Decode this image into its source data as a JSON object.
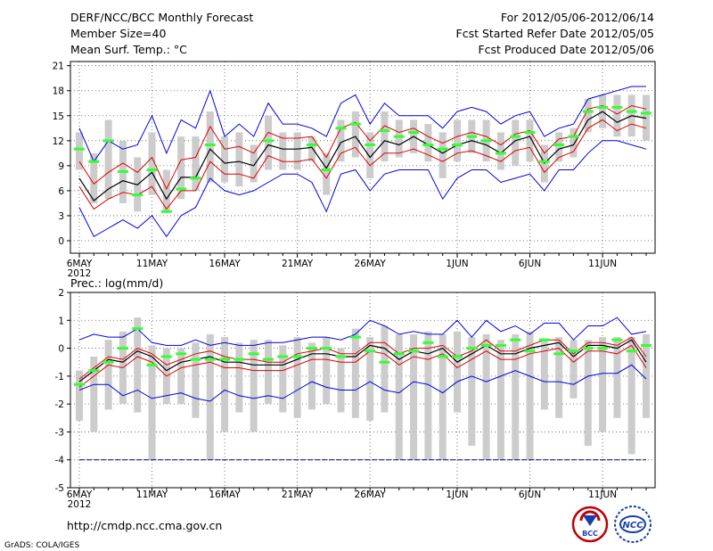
{
  "header": {
    "title": "DERF/NCC/BCC Monthly Forecast",
    "member": "Member Size=40",
    "variable": "Mean Surf. Temp.: °C",
    "period": "For 2012/05/06-2012/06/14",
    "started": "Fcst Started Refer Date 2012/05/05",
    "produced": "Fcst Produced Date 2012/05/06"
  },
  "footer": {
    "url": "http://cmdp.ncc.cma.gov.cn",
    "credit": "GrADS: COLA/IGES",
    "logo_left": "BCC",
    "logo_right": "NCC"
  },
  "colors": {
    "box": "#cccccc",
    "mean": "#000000",
    "spread": "#e00000",
    "envelope": "#0000e0",
    "observed": "#33ff33",
    "threshold": "#000090"
  },
  "chart_data": [
    {
      "type": "box-line",
      "title": "Mean Surf. Temp.: °C",
      "unit": "°C",
      "ylim": [
        -1.5,
        21.5
      ],
      "yticks": [
        0,
        3,
        6,
        9,
        12,
        15,
        18,
        21
      ],
      "x_tick_labels": [
        "6MAY",
        "11MAY",
        "16MAY",
        "21MAY",
        "26MAY",
        "1JUN",
        "6JUN",
        "11JUN"
      ],
      "x_tick_days": [
        1,
        6,
        11,
        16,
        21,
        27,
        32,
        37
      ],
      "year_label": "2012",
      "days": 40,
      "series": {
        "mean": [
          7.5,
          4.8,
          6.2,
          7.2,
          6.7,
          8.2,
          5.0,
          7.6,
          7.6,
          11.0,
          9.3,
          9.5,
          9.0,
          11.5,
          11.0,
          11.0,
          11.2,
          8.7,
          11.8,
          12.5,
          10.0,
          12.0,
          11.5,
          12.5,
          11.5,
          10.5,
          11.5,
          12.0,
          11.5,
          10.5,
          12.0,
          12.5,
          9.3,
          11.0,
          11.5,
          14.5,
          15.5,
          14.2,
          15.0,
          14.7
        ],
        "upper": [
          9.5,
          6.8,
          8.2,
          9.3,
          8.2,
          10.0,
          6.2,
          9.7,
          10.0,
          13.7,
          11.0,
          11.3,
          10.5,
          13.0,
          12.3,
          12.3,
          12.5,
          10.0,
          13.5,
          14.2,
          12.0,
          13.8,
          13.0,
          13.5,
          12.5,
          11.7,
          12.5,
          13.0,
          12.5,
          11.5,
          12.8,
          13.2,
          10.5,
          12.2,
          12.5,
          15.8,
          16.2,
          15.2,
          16.2,
          15.8
        ],
        "lower": [
          6.5,
          3.8,
          5.0,
          5.8,
          5.5,
          6.5,
          3.8,
          6.0,
          6.0,
          9.5,
          8.0,
          8.0,
          7.5,
          10.2,
          9.5,
          9.5,
          9.8,
          7.5,
          10.5,
          11.2,
          9.0,
          10.5,
          10.5,
          11.0,
          10.3,
          9.5,
          10.5,
          10.8,
          10.2,
          9.5,
          10.8,
          11.2,
          8.2,
          10.0,
          10.7,
          13.5,
          14.5,
          13.2,
          14.0,
          13.5
        ],
        "env_high": [
          13.5,
          9.5,
          12.0,
          11.0,
          11.5,
          15.0,
          10.5,
          14.5,
          13.5,
          18.0,
          12.5,
          14.0,
          12.5,
          16.5,
          14.0,
          14.0,
          13.5,
          12.5,
          16.5,
          17.5,
          14.0,
          16.5,
          15.0,
          15.0,
          15.0,
          13.5,
          15.5,
          16.0,
          15.5,
          14.0,
          15.0,
          15.5,
          12.5,
          13.5,
          14.0,
          17.0,
          17.5,
          18.0,
          18.5,
          18.5
        ],
        "env_low": [
          4.0,
          0.5,
          1.5,
          2.5,
          1.5,
          3.0,
          0.5,
          3.0,
          4.0,
          7.5,
          6.0,
          5.5,
          6.0,
          7.0,
          8.0,
          8.0,
          7.0,
          3.5,
          8.0,
          8.5,
          6.0,
          8.0,
          8.5,
          8.5,
          8.5,
          5.0,
          7.5,
          8.5,
          8.5,
          7.0,
          7.5,
          8.0,
          6.0,
          8.5,
          8.5,
          10.5,
          12.0,
          12.0,
          11.5,
          11.0
        ],
        "box_high": [
          13.0,
          10.5,
          14.5,
          12.0,
          10.0,
          13.0,
          8.5,
          12.5,
          12.5,
          15.5,
          12.5,
          13.0,
          11.5,
          15.0,
          13.0,
          13.0,
          12.5,
          10.5,
          14.5,
          15.5,
          13.0,
          15.5,
          14.5,
          14.5,
          14.0,
          13.0,
          14.5,
          14.5,
          14.5,
          13.0,
          14.5,
          14.5,
          11.5,
          13.0,
          13.5,
          17.0,
          17.5,
          17.5,
          17.5,
          17.5
        ],
        "box_low": [
          8.5,
          4.5,
          5.0,
          4.5,
          3.5,
          5.5,
          3.5,
          5.0,
          6.0,
          7.0,
          7.0,
          6.5,
          7.0,
          8.5,
          8.5,
          8.5,
          9.5,
          5.5,
          9.5,
          10.0,
          7.5,
          9.5,
          10.0,
          10.5,
          9.5,
          7.5,
          9.5,
          10.5,
          9.5,
          8.5,
          9.0,
          9.5,
          7.0,
          9.5,
          10.0,
          13.0,
          13.5,
          12.5,
          12.5,
          12.0
        ],
        "observed": [
          11.0,
          9.5,
          12.0,
          8.3,
          5.5,
          8.5,
          3.5,
          6.2,
          7.5,
          11.5,
          null,
          null,
          null,
          12.0,
          null,
          null,
          11.5,
          8.5,
          13.5,
          14.0,
          11.5,
          13.2,
          12.5,
          13.0,
          11.5,
          11.0,
          11.5,
          12.5,
          12.0,
          10.5,
          12.5,
          13.0,
          9.5,
          11.5,
          12.5,
          15.5,
          16.0,
          16.0,
          15.5,
          15.3
        ]
      }
    },
    {
      "type": "box-line",
      "title": "Prec.: log(mm/d)",
      "unit": "log(mm/d)",
      "ylim": [
        -5,
        2
      ],
      "yticks": [
        -5,
        -4,
        -3,
        -2,
        -1,
        0,
        1,
        2
      ],
      "x_tick_labels": [
        "6MAY",
        "11MAY",
        "16MAY",
        "21MAY",
        "26MAY",
        "1JUN",
        "6JUN",
        "11JUN"
      ],
      "x_tick_days": [
        1,
        6,
        11,
        16,
        21,
        27,
        32,
        37
      ],
      "year_label": "2012",
      "days": 40,
      "threshold": -4,
      "series": {
        "mean": [
          -1.2,
          -0.8,
          -0.4,
          -0.5,
          -0.1,
          -0.3,
          -0.8,
          -0.5,
          -0.4,
          -0.3,
          -0.5,
          -0.5,
          -0.6,
          -0.6,
          -0.6,
          -0.4,
          -0.2,
          -0.2,
          -0.3,
          -0.3,
          0.1,
          0.0,
          -0.4,
          -0.1,
          -0.2,
          0.0,
          -0.5,
          -0.2,
          0.1,
          -0.2,
          -0.2,
          0.0,
          0.1,
          0.2,
          -0.3,
          0.1,
          0.1,
          0.0,
          0.3,
          -0.5
        ],
        "upper": [
          -1.1,
          -0.7,
          -0.3,
          -0.4,
          0.0,
          -0.2,
          -0.6,
          -0.4,
          -0.2,
          -0.1,
          -0.3,
          -0.4,
          -0.4,
          -0.5,
          -0.5,
          -0.2,
          -0.1,
          0.0,
          -0.2,
          -0.2,
          0.2,
          0.2,
          -0.2,
          0.0,
          0.0,
          0.1,
          -0.3,
          -0.1,
          0.3,
          -0.1,
          -0.1,
          0.1,
          0.3,
          0.3,
          -0.2,
          0.2,
          0.2,
          0.1,
          0.4,
          -0.3
        ],
        "lower": [
          -1.4,
          -1.0,
          -0.6,
          -0.7,
          -0.3,
          -0.5,
          -1.0,
          -0.7,
          -0.6,
          -0.5,
          -0.7,
          -0.7,
          -0.8,
          -0.8,
          -0.8,
          -0.6,
          -0.4,
          -0.4,
          -0.5,
          -0.5,
          -0.1,
          -0.2,
          -0.6,
          -0.3,
          -0.4,
          -0.2,
          -0.7,
          -0.4,
          -0.1,
          -0.4,
          -0.4,
          -0.2,
          -0.1,
          0.0,
          -0.5,
          -0.1,
          -0.1,
          -0.2,
          0.1,
          -0.7
        ],
        "env_high": [
          0.3,
          0.5,
          0.4,
          0.4,
          0.7,
          0.2,
          0.1,
          0.1,
          0.3,
          0.1,
          0.2,
          0.1,
          0.1,
          0.2,
          0.2,
          0.3,
          0.4,
          0.4,
          0.3,
          0.5,
          1.0,
          0.8,
          0.5,
          0.6,
          0.5,
          0.5,
          1.0,
          0.4,
          1.0,
          0.6,
          0.8,
          0.5,
          0.9,
          0.9,
          0.3,
          0.8,
          0.8,
          1.1,
          0.5,
          0.6
        ],
        "env_low": [
          -1.5,
          -1.3,
          -1.3,
          -1.7,
          -1.5,
          -1.8,
          -1.7,
          -1.6,
          -1.8,
          -1.9,
          -1.5,
          -1.7,
          -1.8,
          -1.7,
          -1.8,
          -1.5,
          -1.2,
          -1.4,
          -1.5,
          -1.5,
          -1.2,
          -1.5,
          -1.6,
          -1.2,
          -1.3,
          -1.6,
          -1.2,
          -1.0,
          -1.2,
          -1.0,
          -0.8,
          -1.0,
          -1.2,
          -1.2,
          -1.3,
          -1.0,
          -0.9,
          -0.9,
          -0.6,
          -1.1
        ],
        "box_high": [
          -0.8,
          -0.3,
          0.3,
          0.6,
          1.1,
          0.1,
          0.0,
          0.0,
          0.2,
          0.5,
          0.4,
          0.2,
          0.3,
          0.3,
          0.1,
          0.4,
          0.2,
          0.4,
          0.0,
          0.7,
          0.4,
          0.8,
          0.5,
          0.5,
          0.6,
          0.5,
          0.6,
          0.4,
          0.5,
          0.3,
          0.5,
          0.6,
          0.3,
          0.4,
          0.3,
          0.3,
          0.4,
          0.4,
          0.4,
          0.5
        ],
        "box_low": [
          -2.6,
          -3.0,
          -2.2,
          -2.0,
          -2.3,
          -4.0,
          -2.0,
          -2.0,
          -2.5,
          -4.0,
          -3.0,
          -2.3,
          -3.0,
          -2.0,
          -2.3,
          -2.5,
          -2.2,
          -2.0,
          -2.3,
          -2.5,
          -2.6,
          -2.3,
          -4.0,
          -4.0,
          -4.0,
          -4.0,
          -2.3,
          -3.5,
          -4.0,
          -4.0,
          -4.0,
          -4.0,
          -2.2,
          -2.5,
          -1.8,
          -3.5,
          -3.0,
          -2.5,
          -3.8,
          -2.5
        ],
        "observed": [
          -1.3,
          -0.8,
          -0.5,
          0.0,
          0.7,
          -0.6,
          -0.3,
          -0.2,
          -0.4,
          -0.4,
          -0.4,
          -0.4,
          -0.2,
          -0.4,
          -0.3,
          -0.3,
          0.0,
          0.0,
          -0.3,
          0.4,
          -0.1,
          -0.5,
          -0.2,
          -0.1,
          0.2,
          -0.3,
          -0.3,
          0.0,
          0.1,
          0.1,
          0.3,
          -0.1,
          0.3,
          -0.2,
          -0.1,
          0.0,
          0.0,
          0.3,
          -0.1,
          0.1
        ]
      }
    }
  ]
}
